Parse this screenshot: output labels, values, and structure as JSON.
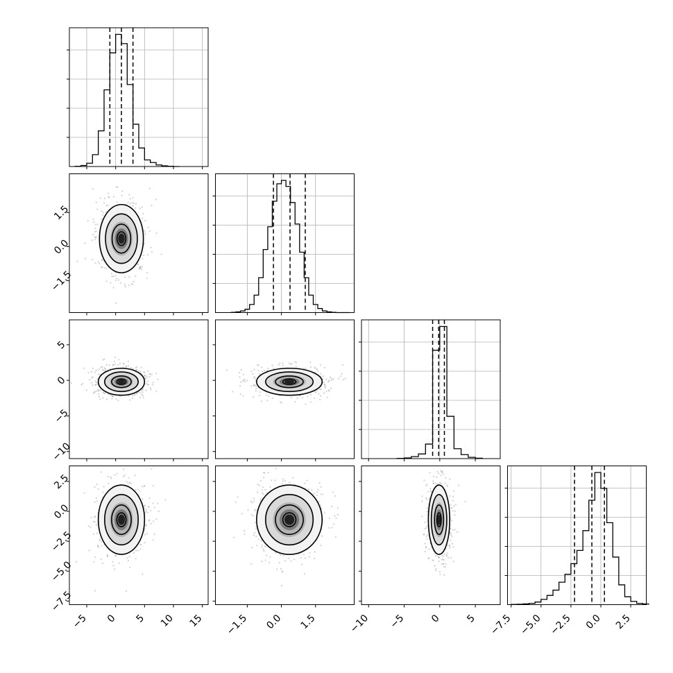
{
  "chart_data": {
    "type": "corner",
    "grid": true,
    "variables": [
      {
        "mean": 1.0,
        "sd": 2.0,
        "range": [
          -8,
          16
        ],
        "ticks": [
          -5,
          0,
          5,
          10,
          15
        ],
        "tick_labels": [
          "−5",
          "0",
          "5",
          "10",
          "15"
        ],
        "quantiles": [
          -1.0,
          1.0,
          3.0
        ]
      },
      {
        "mean": 0.4,
        "sd": 0.72,
        "range": [
          -2.9,
          3.2
        ],
        "ticks": [
          -1.5,
          0.0,
          1.5
        ],
        "tick_labels": [
          "−1.5",
          "0.0",
          "1.5"
        ],
        "quantiles": [
          -0.35,
          0.38,
          1.05
        ]
      },
      {
        "mean": -0.1,
        "sd": 0.8,
        "range": [
          -11,
          8.5
        ],
        "ticks": [
          -10,
          -5,
          0,
          5
        ],
        "tick_labels": [
          "−10",
          "−5",
          "0",
          "5"
        ],
        "quantiles": [
          -1.0,
          -0.15,
          0.65
        ]
      },
      {
        "mean": -0.7,
        "sd": 1.45,
        "range": [
          -7.8,
          3.8
        ],
        "ticks": [
          -7.5,
          -5.0,
          -2.5,
          0.0,
          2.5
        ],
        "tick_labels": [
          "−7.5",
          "−5.0",
          "−2.5",
          "0.0",
          "2.5"
        ],
        "quantiles": [
          -2.2,
          -0.75,
          0.3
        ]
      }
    ],
    "histograms": [
      {
        "bins": [
          -7,
          -6,
          -5,
          -4,
          -3,
          -2,
          -1,
          0,
          1,
          2,
          3,
          4,
          5,
          6,
          7,
          8,
          9,
          10
        ],
        "counts": [
          2,
          8,
          25,
          90,
          270,
          580,
          860,
          1000,
          930,
          620,
          320,
          140,
          50,
          30,
          12,
          5,
          2,
          0
        ]
      },
      {
        "bins": [
          -2.2,
          -2.0,
          -1.8,
          -1.6,
          -1.4,
          -1.2,
          -1.0,
          -0.8,
          -0.6,
          -0.4,
          -0.2,
          0.0,
          0.2,
          0.4,
          0.6,
          0.8,
          1.0,
          1.2,
          1.4,
          1.6,
          1.8,
          2.0,
          2.2,
          2.4,
          2.6,
          2.8
        ],
        "counts": [
          2,
          5,
          12,
          25,
          60,
          130,
          260,
          470,
          640,
          830,
          960,
          985,
          940,
          820,
          660,
          450,
          260,
          130,
          60,
          30,
          12,
          5,
          2,
          0,
          0,
          0
        ]
      },
      {
        "bins": [
          -6,
          -5,
          -4,
          -3,
          -2,
          -1,
          0,
          1,
          2,
          3,
          4,
          5
        ],
        "counts": [
          2,
          5,
          15,
          35,
          110,
          820,
          1000,
          320,
          75,
          30,
          10,
          3
        ]
      },
      {
        "bins": [
          -7.5,
          -7.0,
          -6.5,
          -6.0,
          -5.5,
          -5.0,
          -4.5,
          -4.0,
          -3.5,
          -3.0,
          -2.5,
          -2.0,
          -1.5,
          -1.0,
          -0.5,
          0.0,
          0.5,
          1.0,
          1.5,
          2.0,
          2.5,
          3.0,
          3.5
        ],
        "counts": [
          2,
          3,
          6,
          10,
          20,
          40,
          70,
          110,
          170,
          230,
          310,
          410,
          560,
          790,
          1000,
          880,
          620,
          360,
          150,
          60,
          25,
          10,
          5
        ]
      }
    ],
    "panels": [
      {
        "row": 1,
        "col": 0,
        "center": [
          1.0,
          0.35
        ],
        "sd": [
          1.9,
          0.75
        ]
      },
      {
        "row": 2,
        "col": 0,
        "center": [
          1.0,
          -0.2
        ],
        "sd": [
          2.0,
          0.95
        ]
      },
      {
        "row": 2,
        "col": 1,
        "center": [
          0.35,
          -0.2
        ],
        "sd": [
          0.72,
          0.95
        ]
      },
      {
        "row": 3,
        "col": 0,
        "center": [
          1.0,
          -0.7
        ],
        "sd": [
          2.0,
          1.45
        ]
      },
      {
        "row": 3,
        "col": 1,
        "center": [
          0.35,
          -0.7
        ],
        "sd": [
          0.72,
          1.45
        ]
      },
      {
        "row": 3,
        "col": 2,
        "center": [
          -0.1,
          -0.7
        ],
        "sd": [
          0.75,
          1.45
        ]
      }
    ]
  }
}
